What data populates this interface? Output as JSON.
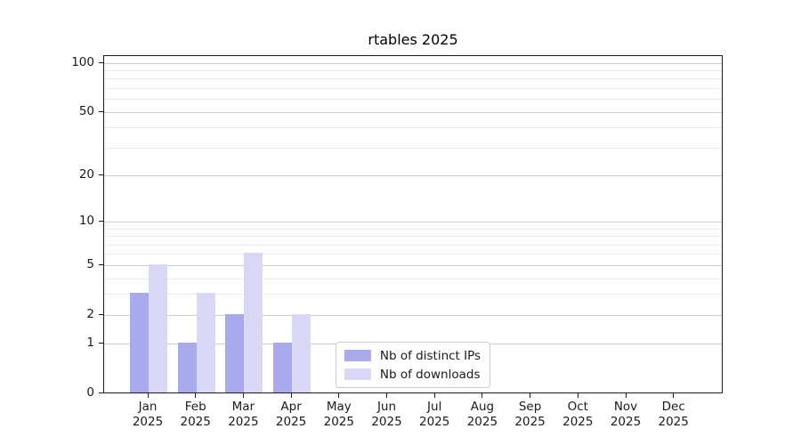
{
  "chart_data": {
    "type": "bar",
    "title": "rtables 2025",
    "categories": [
      "Jan",
      "Feb",
      "Mar",
      "Apr",
      "May",
      "Jun",
      "Jul",
      "Aug",
      "Sep",
      "Oct",
      "Nov",
      "Dec"
    ],
    "category_year": "2025",
    "series": [
      {
        "name": "Nb of distinct IPs",
        "color": "#a9a9ee",
        "values": [
          3,
          1,
          2,
          1,
          0,
          0,
          0,
          0,
          0,
          0,
          0,
          0
        ]
      },
      {
        "name": "Nb of downloads",
        "color": "#d8d8f6",
        "values": [
          5,
          3,
          6,
          2,
          0,
          0,
          0,
          0,
          0,
          0,
          0,
          0
        ]
      }
    ],
    "y_scale": "log1p",
    "y_axis_top_value": 110,
    "y_tick_labels": [
      0,
      1,
      2,
      5,
      10,
      20,
      50,
      100
    ],
    "y_minor_gridlines": [
      3,
      4,
      6,
      7,
      8,
      9,
      30,
      40,
      60,
      70,
      80,
      90
    ],
    "y_major_gridlines": [
      1,
      2,
      5,
      10,
      20,
      50,
      100
    ],
    "grid": true,
    "legend_position": "lower center",
    "colors": {
      "major_grid": "#cccccc",
      "minor_grid": "#ebebeb",
      "spine": "#1a1a1a",
      "text": "#1a1a1a"
    }
  }
}
